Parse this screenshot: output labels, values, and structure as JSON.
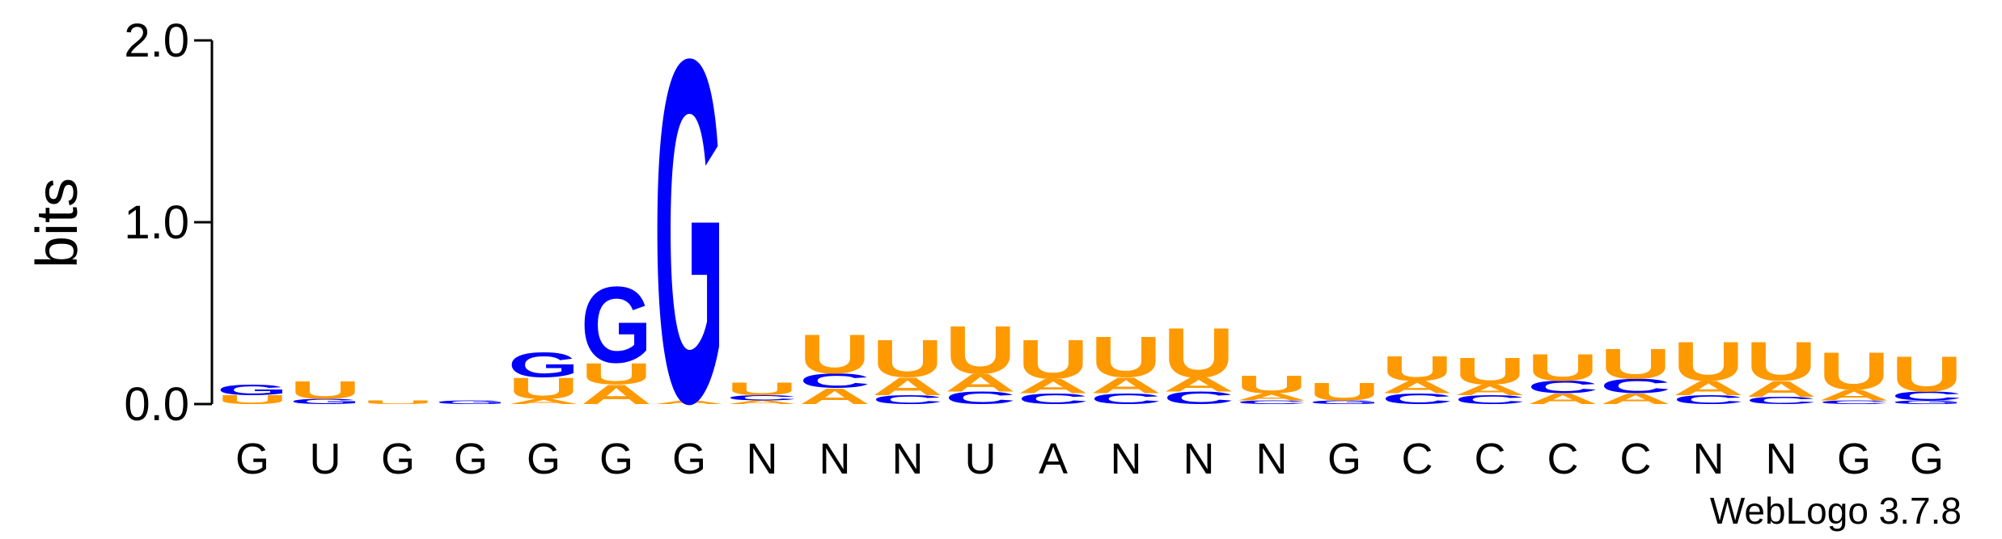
{
  "chart_data": {
    "type": "logo",
    "ylabel": "bits",
    "ylim": [
      0,
      2
    ],
    "yticks": [
      {
        "value": 0,
        "label": "0.0"
      },
      {
        "value": 1,
        "label": "1.0"
      },
      {
        "value": 2,
        "label": "2.0"
      }
    ],
    "colors": {
      "A": "#ff9900",
      "U": "#ff9900",
      "C": "#0000ff",
      "G": "#0000ff"
    },
    "footer": "WebLogo 3.7.8",
    "columns": [
      {
        "label": "G",
        "stack": [
          {
            "letter": "U",
            "value": 0.05
          },
          {
            "letter": "G",
            "value": 0.06
          }
        ]
      },
      {
        "label": "U",
        "stack": [
          {
            "letter": "G",
            "value": 0.03
          },
          {
            "letter": "U",
            "value": 0.1
          }
        ]
      },
      {
        "label": "G",
        "stack": [
          {
            "letter": "U",
            "value": 0.02
          }
        ]
      },
      {
        "label": "G",
        "stack": [
          {
            "letter": "G",
            "value": 0.02
          }
        ]
      },
      {
        "label": "G",
        "stack": [
          {
            "letter": "A",
            "value": 0.03
          },
          {
            "letter": "U",
            "value": 0.12
          },
          {
            "letter": "G",
            "value": 0.14
          }
        ]
      },
      {
        "label": "G",
        "stack": [
          {
            "letter": "A",
            "value": 0.11
          },
          {
            "letter": "U",
            "value": 0.12
          },
          {
            "letter": "G",
            "value": 0.43
          }
        ]
      },
      {
        "label": "G",
        "stack": [
          {
            "letter": "A",
            "value": 0.02
          },
          {
            "letter": "G",
            "value": 1.94
          }
        ]
      },
      {
        "label": "N",
        "stack": [
          {
            "letter": "A",
            "value": 0.02
          },
          {
            "letter": "C",
            "value": 0.03
          },
          {
            "letter": "U",
            "value": 0.07
          }
        ]
      },
      {
        "label": "N",
        "stack": [
          {
            "letter": "A",
            "value": 0.09
          },
          {
            "letter": "C",
            "value": 0.08
          },
          {
            "letter": "U",
            "value": 0.22
          }
        ]
      },
      {
        "label": "N",
        "stack": [
          {
            "letter": "C",
            "value": 0.05
          },
          {
            "letter": "A",
            "value": 0.1
          },
          {
            "letter": "U",
            "value": 0.21
          }
        ]
      },
      {
        "label": "U",
        "stack": [
          {
            "letter": "C",
            "value": 0.07
          },
          {
            "letter": "A",
            "value": 0.1
          },
          {
            "letter": "U",
            "value": 0.27
          }
        ]
      },
      {
        "label": "A",
        "stack": [
          {
            "letter": "C",
            "value": 0.06
          },
          {
            "letter": "A",
            "value": 0.08
          },
          {
            "letter": "U",
            "value": 0.22
          }
        ]
      },
      {
        "label": "N",
        "stack": [
          {
            "letter": "C",
            "value": 0.06
          },
          {
            "letter": "A",
            "value": 0.09
          },
          {
            "letter": "U",
            "value": 0.23
          }
        ]
      },
      {
        "label": "N",
        "stack": [
          {
            "letter": "C",
            "value": 0.07
          },
          {
            "letter": "A",
            "value": 0.08
          },
          {
            "letter": "U",
            "value": 0.28
          }
        ]
      },
      {
        "label": "N",
        "stack": [
          {
            "letter": "C",
            "value": 0.02
          },
          {
            "letter": "A",
            "value": 0.04
          },
          {
            "letter": "U",
            "value": 0.1
          }
        ]
      },
      {
        "label": "G",
        "stack": [
          {
            "letter": "G",
            "value": 0.02
          },
          {
            "letter": "U",
            "value": 0.1
          }
        ]
      },
      {
        "label": "C",
        "stack": [
          {
            "letter": "C",
            "value": 0.06
          },
          {
            "letter": "A",
            "value": 0.07
          },
          {
            "letter": "U",
            "value": 0.14
          }
        ]
      },
      {
        "label": "C",
        "stack": [
          {
            "letter": "C",
            "value": 0.05
          },
          {
            "letter": "A",
            "value": 0.06
          },
          {
            "letter": "U",
            "value": 0.15
          }
        ]
      },
      {
        "label": "C",
        "stack": [
          {
            "letter": "A",
            "value": 0.06
          },
          {
            "letter": "C",
            "value": 0.07
          },
          {
            "letter": "U",
            "value": 0.15
          }
        ]
      },
      {
        "label": "C",
        "stack": [
          {
            "letter": "A",
            "value": 0.06
          },
          {
            "letter": "C",
            "value": 0.08
          },
          {
            "letter": "U",
            "value": 0.17
          }
        ]
      },
      {
        "label": "N",
        "stack": [
          {
            "letter": "C",
            "value": 0.05
          },
          {
            "letter": "A",
            "value": 0.08
          },
          {
            "letter": "U",
            "value": 0.22
          }
        ]
      },
      {
        "label": "N",
        "stack": [
          {
            "letter": "C",
            "value": 0.04
          },
          {
            "letter": "A",
            "value": 0.09
          },
          {
            "letter": "U",
            "value": 0.22
          }
        ]
      },
      {
        "label": "G",
        "stack": [
          {
            "letter": "C",
            "value": 0.02
          },
          {
            "letter": "A",
            "value": 0.06
          },
          {
            "letter": "U",
            "value": 0.21
          }
        ]
      },
      {
        "label": "G",
        "stack": [
          {
            "letter": "G",
            "value": 0.02
          },
          {
            "letter": "C",
            "value": 0.05
          },
          {
            "letter": "U",
            "value": 0.2
          }
        ]
      }
    ]
  }
}
